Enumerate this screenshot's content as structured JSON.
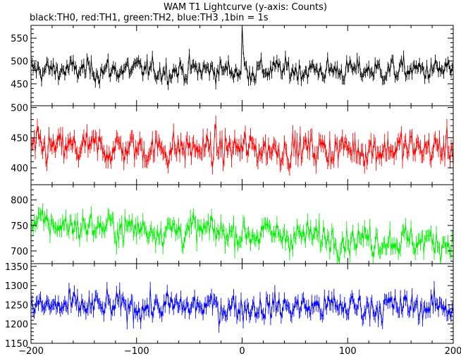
{
  "chart_data": {
    "type": "line",
    "title": "WAM T1 Lightcurve (y-axis: Counts)",
    "subtitle": "black:TH0, red:TH1, green:TH2, blue:TH3 ,1bin = 1s",
    "xlim": [
      -200,
      200
    ],
    "x_ticks": [
      -200,
      -100,
      0,
      100,
      200
    ],
    "x_tick_labels": [
      "−200",
      "−100",
      "0",
      "100",
      "200"
    ],
    "panels": [
      {
        "name": "TH0",
        "color": "#000000",
        "ylim": [
          402,
          578
        ],
        "y_ticks": [
          450,
          500,
          550
        ],
        "y_tick_labels": [
          "450",
          "500",
          "550"
        ],
        "mean": 480,
        "noise": 22,
        "spike_at": 0,
        "spike_value": 578
      },
      {
        "name": "TH1",
        "color": "#ff0000",
        "ylim": [
          372,
          503
        ],
        "y_ticks": [
          400,
          450,
          500
        ],
        "y_tick_labels": [
          "400",
          "450",
          "500"
        ],
        "mean": 432,
        "noise": 24
      },
      {
        "name": "TH2",
        "color": "#00ee00",
        "ylim": [
          675,
          830
        ],
        "y_ticks": [
          700,
          750,
          800
        ],
        "y_tick_labels": [
          "700",
          "750",
          "800"
        ],
        "mean": 735,
        "noise": 26,
        "trend": -0.06
      },
      {
        "name": "TH3",
        "color": "#0000ff",
        "ylim": [
          1150,
          1357
        ],
        "y_ticks": [
          1150,
          1200,
          1250,
          1300,
          1350
        ],
        "y_tick_labels": [
          "1150",
          "1200",
          "1250",
          "1300",
          "1350"
        ],
        "mean": 1245,
        "noise": 32
      }
    ]
  }
}
